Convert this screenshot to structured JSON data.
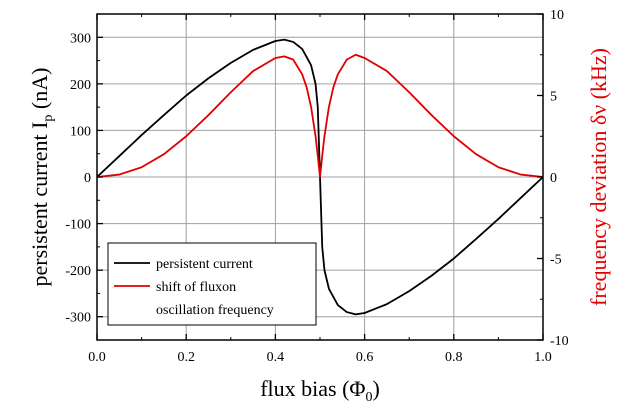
{
  "chart_data": {
    "type": "line",
    "xlabel": "flux bias (Φ",
    "xlabel_sub": "0",
    "xlabel_end": ")",
    "ylabel_left": "persistent current I",
    "ylabel_left_sub": "p",
    "ylabel_left_end": " (nA)",
    "ylabel_right": "frequency deviation δν (kHz)",
    "xlim": [
      0.0,
      1.0
    ],
    "ylim_left": [
      -350,
      350
    ],
    "ylim_right": [
      -10,
      10
    ],
    "x_ticks": [
      "0.0",
      "0.2",
      "0.4",
      "0.6",
      "0.8",
      "1.0"
    ],
    "y_left_ticks": [
      "-300",
      "-200",
      "-100",
      "0",
      "100",
      "200",
      "300"
    ],
    "y_right_ticks": [
      "-10",
      "-5",
      "0",
      "5",
      "10"
    ],
    "grid": true,
    "legend_position": "bottom-left",
    "series": [
      {
        "name": "persistent current",
        "axis": "left",
        "color": "#000000",
        "x": [
          0.0,
          0.05,
          0.1,
          0.15,
          0.2,
          0.25,
          0.3,
          0.35,
          0.4,
          0.42,
          0.44,
          0.46,
          0.48,
          0.49,
          0.495,
          0.5,
          0.505,
          0.51,
          0.52,
          0.54,
          0.56,
          0.58,
          0.6,
          0.65,
          0.7,
          0.75,
          0.8,
          0.85,
          0.9,
          0.95,
          1.0
        ],
        "y": [
          0,
          45,
          90,
          133,
          175,
          212,
          245,
          273,
          292,
          295,
          290,
          275,
          240,
          200,
          150,
          0,
          -150,
          -200,
          -240,
          -275,
          -290,
          -295,
          -292,
          -273,
          -245,
          -212,
          -175,
          -133,
          -90,
          -45,
          0
        ]
      },
      {
        "name": "shift of fluxon oscillation frequency",
        "legend_lines": [
          "shift of fluxon",
          "oscillation frequency"
        ],
        "axis": "right",
        "color": "#e00000",
        "x": [
          0.0,
          0.05,
          0.1,
          0.15,
          0.2,
          0.25,
          0.3,
          0.35,
          0.4,
          0.42,
          0.44,
          0.46,
          0.47,
          0.48,
          0.49,
          0.495,
          0.5,
          0.505,
          0.51,
          0.52,
          0.53,
          0.54,
          0.56,
          0.58,
          0.6,
          0.65,
          0.7,
          0.75,
          0.8,
          0.85,
          0.9,
          0.95,
          1.0
        ],
        "y": [
          0,
          0.15,
          0.6,
          1.4,
          2.5,
          3.8,
          5.2,
          6.5,
          7.3,
          7.4,
          7.2,
          6.3,
          5.5,
          4.3,
          2.5,
          1.3,
          0,
          1.3,
          2.5,
          4.3,
          5.5,
          6.3,
          7.2,
          7.5,
          7.3,
          6.5,
          5.2,
          3.8,
          2.5,
          1.4,
          0.6,
          0.15,
          0
        ]
      }
    ]
  }
}
